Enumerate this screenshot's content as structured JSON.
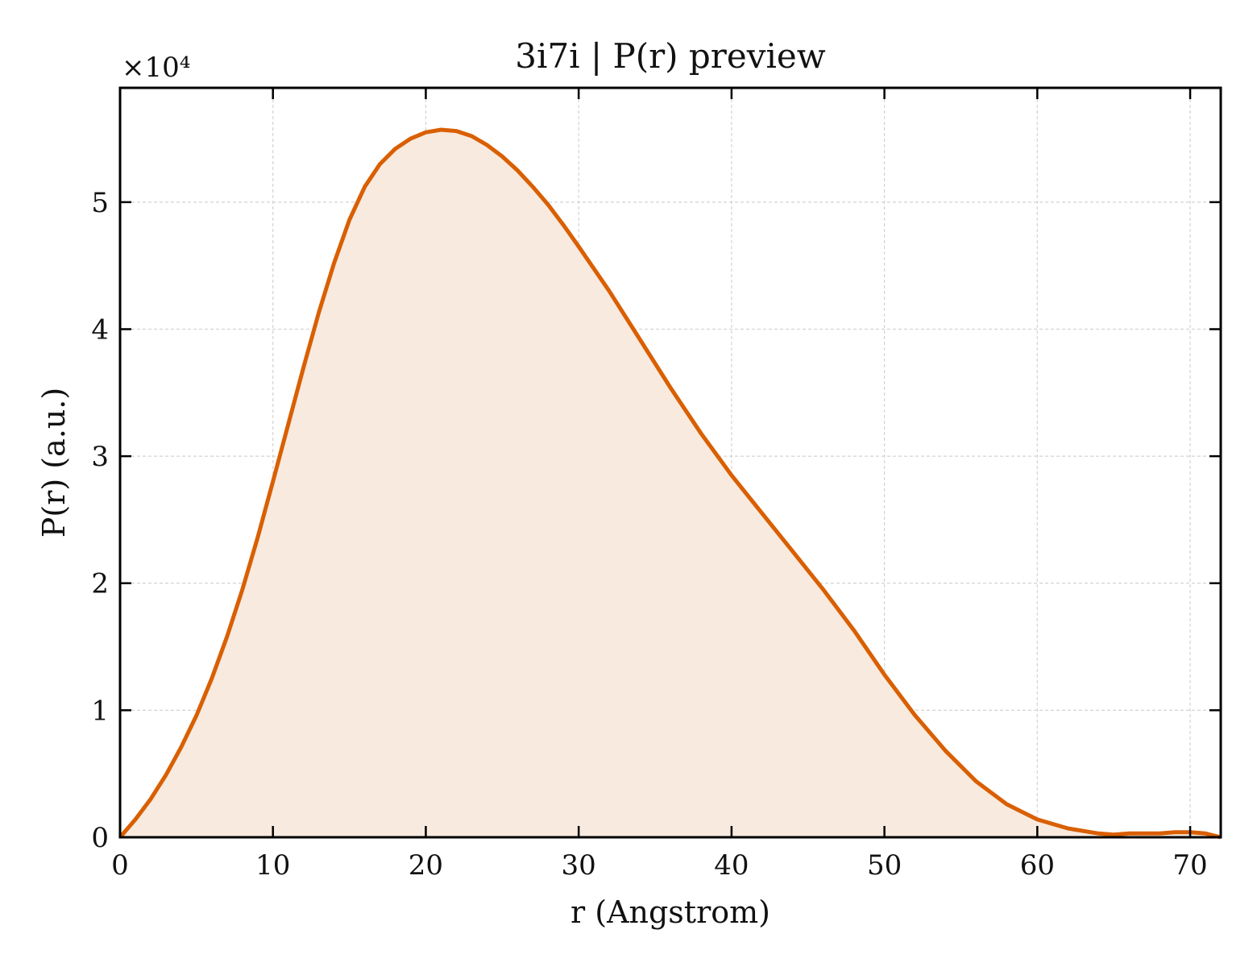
{
  "chart_data": {
    "type": "area",
    "title": "3i7i | P(r) preview",
    "xlabel": "r (Angstrom)",
    "ylabel": "P(r) (a.u.)",
    "y_offset_label": "×10⁴",
    "y_scale_factor": 10000,
    "xlim": [
      0,
      72
    ],
    "ylim": [
      0,
      59000
    ],
    "xticks": [
      0,
      10,
      20,
      30,
      40,
      50,
      60,
      70
    ],
    "yticks": [
      0,
      10000,
      20000,
      30000,
      40000,
      50000
    ],
    "ytick_labels": [
      "0",
      "1",
      "2",
      "3",
      "4",
      "5"
    ],
    "grid": true,
    "line_color": "#d95f02",
    "fill_color": "#f8eadf",
    "series": [
      {
        "x": [
          0,
          1,
          2,
          3,
          4,
          5,
          6,
          7,
          8,
          9,
          10,
          11,
          12,
          13,
          14,
          15,
          16,
          17,
          18,
          19,
          20,
          21,
          22,
          23,
          24,
          25,
          26,
          27,
          28,
          29,
          30,
          32,
          34,
          36,
          38,
          40,
          42,
          44,
          46,
          48,
          50,
          52,
          54,
          56,
          58,
          60,
          62,
          64,
          65,
          66,
          67,
          68,
          69,
          70,
          71,
          72
        ],
        "y": [
          0,
          1400,
          3000,
          4900,
          7100,
          9600,
          12500,
          15800,
          19500,
          23600,
          28000,
          32500,
          37000,
          41300,
          45200,
          48600,
          51200,
          53000,
          54200,
          55000,
          55500,
          55700,
          55600,
          55200,
          54500,
          53600,
          52500,
          51200,
          49800,
          48200,
          46500,
          43000,
          39200,
          35400,
          31800,
          28500,
          25500,
          22500,
          19500,
          16300,
          12800,
          9600,
          6800,
          4400,
          2600,
          1400,
          700,
          300,
          200,
          300,
          300,
          300,
          400,
          400,
          300,
          0
        ]
      }
    ]
  }
}
